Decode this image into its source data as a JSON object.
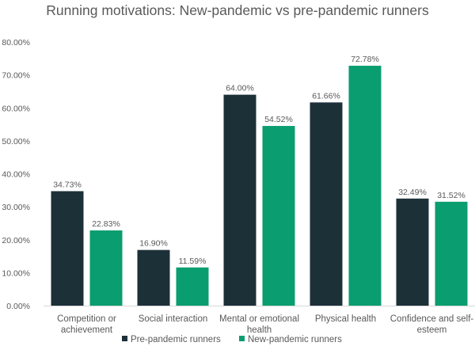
{
  "chart_data": {
    "type": "bar",
    "title": "Running motivations: New-pandemic vs pre-pandemic runners",
    "xlabel": "",
    "ylabel": "",
    "ylim": [
      0,
      0.8
    ],
    "y_ticks": [
      0,
      0.1,
      0.2,
      0.3,
      0.4,
      0.5,
      0.6,
      0.7,
      0.8
    ],
    "y_tick_labels": [
      "0.00%",
      "10.00%",
      "20.00%",
      "30.00%",
      "40.00%",
      "50.00%",
      "60.00%",
      "70.00%",
      "80.00%"
    ],
    "grid": false,
    "legend_position": "bottom",
    "categories": [
      "Competition or achievement",
      "Social interaction",
      "Mental or emotional health",
      "Physical health",
      "Confidence and self-esteem"
    ],
    "series": [
      {
        "name": "Pre-pandemic runners",
        "color": "#1c3038",
        "values": [
          0.3473,
          0.169,
          0.64,
          0.6166,
          0.3249
        ],
        "labels": [
          "34.73%",
          "16.90%",
          "64.00%",
          "61.66%",
          "32.49%"
        ]
      },
      {
        "name": "New-pandemic runners",
        "color": "#0a9d70",
        "values": [
          0.2283,
          0.1159,
          0.5452,
          0.7278,
          0.3152
        ],
        "labels": [
          "22.83%",
          "11.59%",
          "54.52%",
          "72.78%",
          "31.52%"
        ]
      }
    ]
  }
}
